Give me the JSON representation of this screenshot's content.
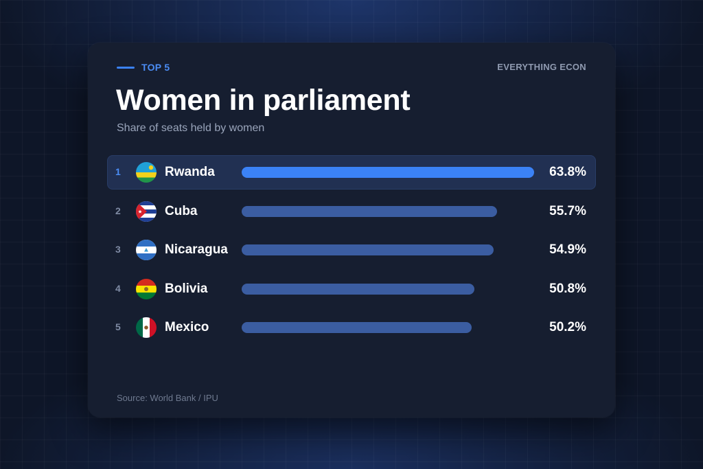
{
  "header": {
    "tag": "TOP 5",
    "brand": "EVERYTHING ECON",
    "title": "Women in parliament",
    "subtitle": "Share of seats held by women"
  },
  "footer": {
    "source": "Source: World Bank / IPU"
  },
  "colors": {
    "accent": "#3b82f6",
    "bar": "#3b5da1",
    "card": "#161e30",
    "background": "#0e1628"
  },
  "chart_data": {
    "type": "bar",
    "orientation": "horizontal",
    "title": "Women in parliament",
    "subtitle": "Share of seats held by women",
    "xlim": [
      0,
      63.8
    ],
    "categories": [
      "Rwanda",
      "Cuba",
      "Nicaragua",
      "Bolivia",
      "Mexico"
    ],
    "values": [
      63.8,
      55.7,
      54.9,
      50.8,
      50.2
    ],
    "rows": [
      {
        "rank": "1",
        "country": "Rwanda",
        "value": 63.8,
        "value_label": "63.8%",
        "flag": "rwanda-flag",
        "highlight": true
      },
      {
        "rank": "2",
        "country": "Cuba",
        "value": 55.7,
        "value_label": "55.7%",
        "flag": "cuba-flag",
        "highlight": false
      },
      {
        "rank": "3",
        "country": "Nicaragua",
        "value": 54.9,
        "value_label": "54.9%",
        "flag": "nicaragua-flag",
        "highlight": false
      },
      {
        "rank": "4",
        "country": "Bolivia",
        "value": 50.8,
        "value_label": "50.8%",
        "flag": "bolivia-flag",
        "highlight": false
      },
      {
        "rank": "5",
        "country": "Mexico",
        "value": 50.2,
        "value_label": "50.2%",
        "flag": "mexico-flag",
        "highlight": false
      }
    ]
  }
}
